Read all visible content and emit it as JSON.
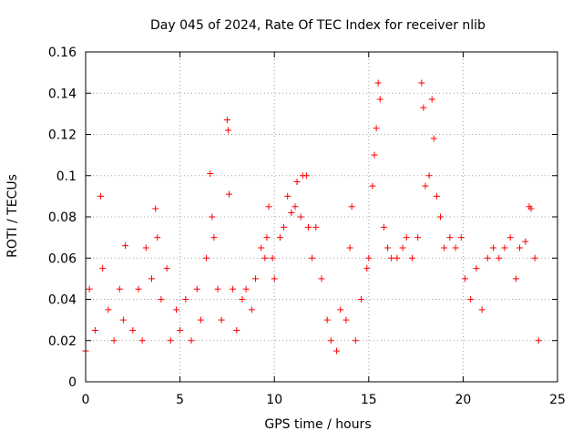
{
  "chart_data": {
    "type": "scatter",
    "title": "Day 045 of 2024, Rate Of TEC Index for receiver nlib",
    "xlabel": "GPS time / hours",
    "ylabel": "ROTI / TECUs",
    "xlim": [
      0,
      25
    ],
    "ylim": [
      0,
      0.16
    ],
    "x_ticks": [
      0,
      5,
      10,
      15,
      20,
      25
    ],
    "x_tick_labels": [
      "0",
      "5",
      "10",
      "15",
      "20",
      "25"
    ],
    "y_ticks": [
      0,
      0.02,
      0.04,
      0.06,
      0.08,
      0.1,
      0.12,
      0.14,
      0.16
    ],
    "y_tick_labels": [
      "0",
      "0.02",
      "0.04",
      "0.06",
      "0.08",
      "0.1",
      "0.12",
      "0.14",
      "0.16"
    ],
    "grid": true,
    "marker": "+",
    "marker_color": "#ff0000",
    "series": [
      {
        "name": "ROTI",
        "points": [
          [
            0.0,
            0.015
          ],
          [
            0.2,
            0.045
          ],
          [
            0.5,
            0.025
          ],
          [
            0.8,
            0.09
          ],
          [
            0.9,
            0.055
          ],
          [
            1.2,
            0.035
          ],
          [
            1.5,
            0.02
          ],
          [
            1.8,
            0.045
          ],
          [
            2.0,
            0.03
          ],
          [
            2.1,
            0.066
          ],
          [
            2.5,
            0.025
          ],
          [
            2.8,
            0.045
          ],
          [
            3.0,
            0.02
          ],
          [
            3.2,
            0.065
          ],
          [
            3.5,
            0.05
          ],
          [
            3.7,
            0.084
          ],
          [
            3.8,
            0.07
          ],
          [
            4.0,
            0.04
          ],
          [
            4.3,
            0.055
          ],
          [
            4.5,
            0.02
          ],
          [
            4.8,
            0.035
          ],
          [
            5.0,
            0.025
          ],
          [
            5.3,
            0.04
          ],
          [
            5.6,
            0.02
          ],
          [
            5.9,
            0.045
          ],
          [
            6.1,
            0.03
          ],
          [
            6.4,
            0.06
          ],
          [
            6.6,
            0.101
          ],
          [
            6.7,
            0.08
          ],
          [
            6.8,
            0.07
          ],
          [
            7.0,
            0.045
          ],
          [
            7.2,
            0.03
          ],
          [
            7.5,
            0.127
          ],
          [
            7.55,
            0.122
          ],
          [
            7.6,
            0.091
          ],
          [
            7.8,
            0.045
          ],
          [
            8.0,
            0.025
          ],
          [
            8.3,
            0.04
          ],
          [
            8.5,
            0.045
          ],
          [
            8.8,
            0.035
          ],
          [
            9.0,
            0.05
          ],
          [
            9.3,
            0.065
          ],
          [
            9.5,
            0.06
          ],
          [
            9.6,
            0.07
          ],
          [
            9.7,
            0.085
          ],
          [
            9.9,
            0.06
          ],
          [
            10.0,
            0.05
          ],
          [
            10.3,
            0.07
          ],
          [
            10.5,
            0.075
          ],
          [
            10.7,
            0.09
          ],
          [
            10.9,
            0.082
          ],
          [
            11.1,
            0.085
          ],
          [
            11.2,
            0.097
          ],
          [
            11.4,
            0.08
          ],
          [
            11.5,
            0.1
          ],
          [
            11.7,
            0.1
          ],
          [
            11.8,
            0.075
          ],
          [
            12.0,
            0.06
          ],
          [
            12.2,
            0.075
          ],
          [
            12.5,
            0.05
          ],
          [
            12.8,
            0.03
          ],
          [
            13.0,
            0.02
          ],
          [
            13.3,
            0.015
          ],
          [
            13.5,
            0.035
          ],
          [
            13.8,
            0.03
          ],
          [
            14.0,
            0.065
          ],
          [
            14.1,
            0.085
          ],
          [
            14.3,
            0.02
          ],
          [
            14.6,
            0.04
          ],
          [
            14.9,
            0.055
          ],
          [
            15.0,
            0.06
          ],
          [
            15.2,
            0.095
          ],
          [
            15.3,
            0.11
          ],
          [
            15.4,
            0.123
          ],
          [
            15.5,
            0.145
          ],
          [
            15.6,
            0.137
          ],
          [
            15.8,
            0.075
          ],
          [
            16.0,
            0.065
          ],
          [
            16.2,
            0.06
          ],
          [
            16.5,
            0.06
          ],
          [
            16.8,
            0.065
          ],
          [
            17.0,
            0.07
          ],
          [
            17.3,
            0.06
          ],
          [
            17.6,
            0.07
          ],
          [
            17.8,
            0.145
          ],
          [
            17.9,
            0.133
          ],
          [
            18.0,
            0.095
          ],
          [
            18.2,
            0.1
          ],
          [
            18.35,
            0.137
          ],
          [
            18.45,
            0.118
          ],
          [
            18.6,
            0.09
          ],
          [
            18.8,
            0.08
          ],
          [
            19.0,
            0.065
          ],
          [
            19.3,
            0.07
          ],
          [
            19.6,
            0.065
          ],
          [
            19.9,
            0.07
          ],
          [
            20.1,
            0.05
          ],
          [
            20.4,
            0.04
          ],
          [
            20.7,
            0.055
          ],
          [
            21.0,
            0.035
          ],
          [
            21.3,
            0.06
          ],
          [
            21.6,
            0.065
          ],
          [
            21.9,
            0.06
          ],
          [
            22.2,
            0.065
          ],
          [
            22.5,
            0.07
          ],
          [
            22.8,
            0.05
          ],
          [
            23.0,
            0.065
          ],
          [
            23.3,
            0.068
          ],
          [
            23.5,
            0.085
          ],
          [
            23.6,
            0.084
          ],
          [
            23.8,
            0.06
          ],
          [
            24.0,
            0.02
          ]
        ]
      }
    ]
  }
}
